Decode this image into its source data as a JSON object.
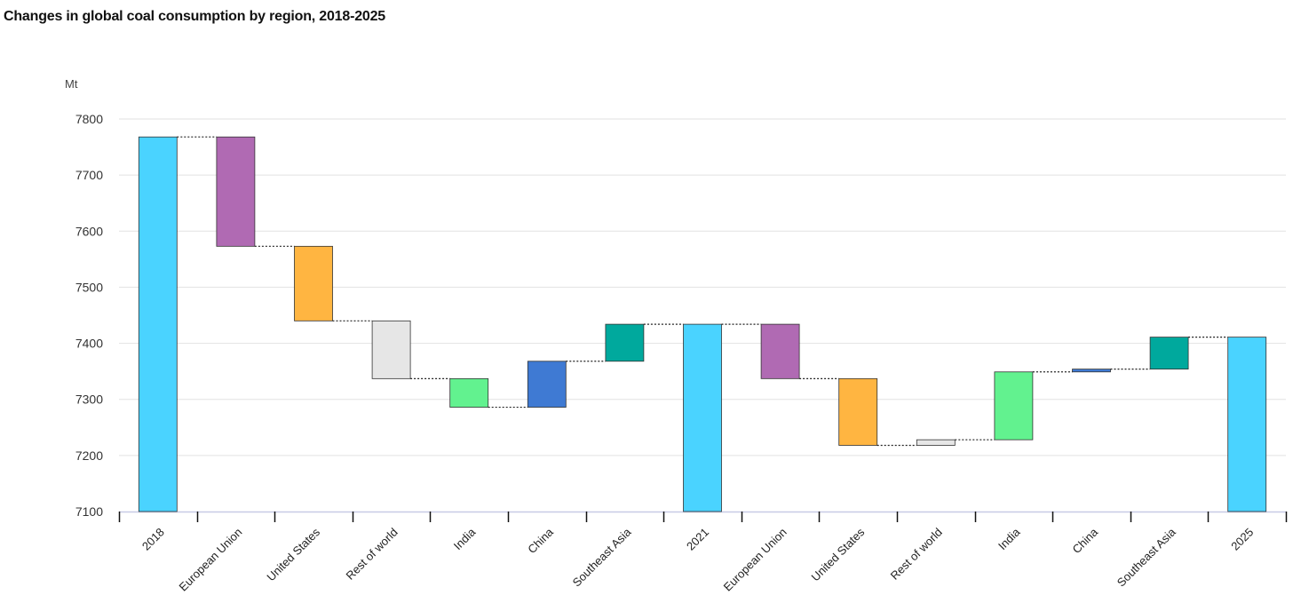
{
  "chart_data": {
    "type": "waterfall",
    "title": "Changes in global coal consumption by region, 2018-2025",
    "ylabel": "Mt",
    "ylim": [
      7100,
      7800
    ],
    "yticks": [
      7100,
      7200,
      7300,
      7400,
      7500,
      7600,
      7700,
      7800
    ],
    "grid": true,
    "categories": [
      "2018",
      "European Union",
      "United States",
      "Rest of world",
      "India",
      "China",
      "Southeast Asia",
      "2021",
      "European Union",
      "United States",
      "Rest of world",
      "India",
      "China",
      "Southeast Asia",
      "2025"
    ],
    "bars": [
      {
        "label": "2018",
        "kind": "total",
        "start": 7100,
        "end": 7768,
        "color": "#4ad3ff"
      },
      {
        "label": "European Union",
        "kind": "change",
        "start": 7768,
        "end": 7573,
        "color": "#b06ab3"
      },
      {
        "label": "United States",
        "kind": "change",
        "start": 7573,
        "end": 7440,
        "color": "#ffb541"
      },
      {
        "label": "Rest of world",
        "kind": "change",
        "start": 7440,
        "end": 7337,
        "color": "#e6e6e6"
      },
      {
        "label": "India",
        "kind": "change",
        "start": 7337,
        "end": 7286,
        "color": "#62f28f"
      },
      {
        "label": "China",
        "kind": "change",
        "start": 7286,
        "end": 7368,
        "color": "#3f7ad3"
      },
      {
        "label": "Southeast Asia",
        "kind": "change",
        "start": 7368,
        "end": 7434,
        "color": "#00a99d"
      },
      {
        "label": "2021",
        "kind": "total",
        "start": 7100,
        "end": 7434,
        "color": "#4ad3ff"
      },
      {
        "label": "European Union",
        "kind": "change",
        "start": 7434,
        "end": 7337,
        "color": "#b06ab3"
      },
      {
        "label": "United States",
        "kind": "change",
        "start": 7337,
        "end": 7218,
        "color": "#ffb541"
      },
      {
        "label": "Rest of world",
        "kind": "change",
        "start": 7218,
        "end": 7228,
        "color": "#e6e6e6"
      },
      {
        "label": "India",
        "kind": "change",
        "start": 7228,
        "end": 7349,
        "color": "#62f28f"
      },
      {
        "label": "China",
        "kind": "change",
        "start": 7349,
        "end": 7354,
        "color": "#3f7ad3"
      },
      {
        "label": "Southeast Asia",
        "kind": "change",
        "start": 7354,
        "end": 7411,
        "color": "#00a99d"
      },
      {
        "label": "2025",
        "kind": "total",
        "start": 7100,
        "end": 7411,
        "color": "#4ad3ff"
      }
    ]
  }
}
